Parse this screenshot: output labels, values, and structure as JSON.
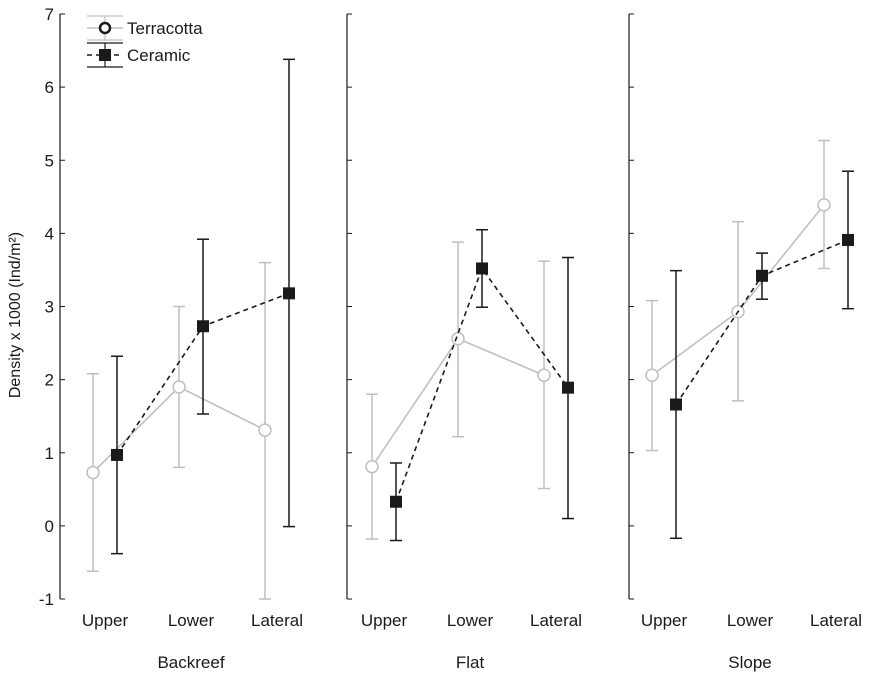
{
  "chart_data": {
    "type": "line",
    "ylabel": "Density x 1000 (Ind/m²)",
    "ylim": [
      -1,
      7
    ],
    "yticks": [
      -1,
      0,
      1,
      2,
      3,
      4,
      5,
      6,
      7
    ],
    "categories": [
      "Upper",
      "Lower",
      "Lateral"
    ],
    "legend": {
      "position": "top-left"
    },
    "series_style": [
      {
        "name": "Terracotta",
        "color": "#bfbfbf",
        "marker": "open-circle",
        "line": "solid"
      },
      {
        "name": "Ceramic",
        "color": "#1a1a1a",
        "marker": "filled-square",
        "line": "dashed"
      }
    ],
    "panels": [
      {
        "title": "Backreef",
        "series": [
          {
            "name": "Terracotta",
            "values": [
              0.73,
              1.9,
              1.31
            ],
            "lower": [
              -0.62,
              0.8,
              -1.0
            ],
            "upper": [
              2.08,
              3.0,
              3.6
            ]
          },
          {
            "name": "Ceramic",
            "values": [
              0.97,
              2.73,
              3.18
            ],
            "lower": [
              -0.38,
              1.53,
              -0.01
            ],
            "upper": [
              2.32,
              3.92,
              6.38
            ]
          }
        ]
      },
      {
        "title": "Flat",
        "series": [
          {
            "name": "Terracotta",
            "values": [
              0.81,
              2.56,
              2.06
            ],
            "lower": [
              -0.18,
              1.22,
              0.51
            ],
            "upper": [
              1.8,
              3.88,
              3.62
            ]
          },
          {
            "name": "Ceramic",
            "values": [
              0.33,
              3.52,
              1.89
            ],
            "lower": [
              -0.2,
              2.99,
              0.1
            ],
            "upper": [
              0.86,
              4.05,
              3.67
            ]
          }
        ]
      },
      {
        "title": "Slope",
        "series": [
          {
            "name": "Terracotta",
            "values": [
              2.06,
              2.93,
              4.39
            ],
            "lower": [
              1.03,
              1.71,
              3.52
            ],
            "upper": [
              3.08,
              4.16,
              5.27
            ]
          },
          {
            "name": "Ceramic",
            "values": [
              1.66,
              3.42,
              3.91
            ],
            "lower": [
              -0.17,
              3.1,
              2.97
            ],
            "upper": [
              3.49,
              3.73,
              4.85
            ]
          }
        ]
      }
    ]
  }
}
